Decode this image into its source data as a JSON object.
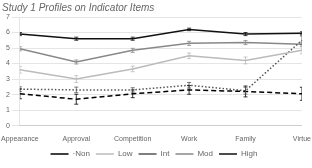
{
  "chart_data": {
    "type": "line",
    "title": "Study 1 Profiles on Indicator Items",
    "categories": [
      "Appearance",
      "Approval",
      "Competition",
      "Work",
      "Family",
      "Virtue"
    ],
    "series": [
      {
        "name": "·Non",
        "color": "#000000",
        "line_style": "dashed",
        "values": [
          2.05,
          1.7,
          2.05,
          2.3,
          2.2,
          2.05
        ],
        "errors": [
          0.32,
          0.32,
          0.25,
          0.28,
          0.35,
          0.42
        ]
      },
      {
        "name": "Low",
        "color": "#bbbbbb",
        "line_style": "solid",
        "values": [
          3.6,
          3.0,
          3.65,
          4.5,
          4.2,
          4.85
        ],
        "errors": [
          0.22,
          0.22,
          0.18,
          0.18,
          0.22,
          0.22
        ]
      },
      {
        "name": "Int",
        "color": "#555555",
        "line_style": "dotted",
        "values": [
          2.35,
          2.3,
          2.3,
          2.6,
          2.25,
          5.5
        ],
        "errors": [
          0.15,
          0.18,
          0.14,
          0.18,
          0.22,
          0.28
        ]
      },
      {
        "name": "Mod",
        "color": "#888888",
        "line_style": "solid",
        "values": [
          4.95,
          4.1,
          4.85,
          5.3,
          5.35,
          5.25
        ],
        "errors": [
          0.13,
          0.13,
          0.13,
          0.13,
          0.13,
          0.13
        ]
      },
      {
        "name": "High",
        "color": "#111111",
        "line_style": "solid",
        "values": [
          5.9,
          5.6,
          5.6,
          6.2,
          5.9,
          5.95
        ],
        "errors": [
          0.1,
          0.1,
          0.1,
          0.08,
          0.1,
          0.1
        ]
      }
    ],
    "ylim": [
      0,
      7
    ],
    "yticks": [
      0,
      1,
      2,
      3,
      4,
      5,
      6,
      7
    ],
    "grid": true,
    "legend": "bottom"
  }
}
